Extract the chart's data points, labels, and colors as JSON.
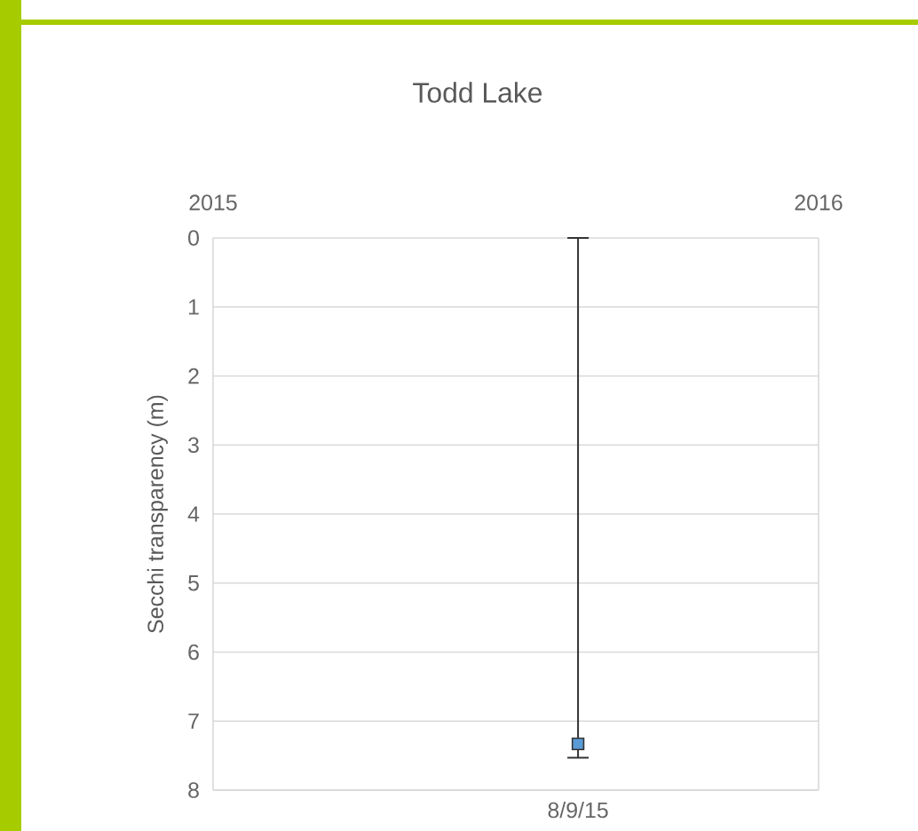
{
  "chart_data": {
    "type": "scatter",
    "title": "Todd Lake",
    "ylabel": "Secchi transparency (m)",
    "x": [
      "2015-08-09"
    ],
    "series": [
      {
        "color": "#5b9bd5",
        "values": [
          7.33
        ],
        "errors": [
          [
            0,
            7.53
          ]
        ]
      }
    ],
    "marker": "square",
    "xlim": [
      "2015",
      "2016"
    ],
    "xticks": [
      "2015",
      "2016"
    ],
    "annotations": [
      "8/9/15"
    ],
    "ylim": [
      8,
      0
    ],
    "yticks": [
      0,
      1,
      2,
      3,
      4,
      5,
      6,
      7,
      8
    ],
    "grid": "y"
  }
}
